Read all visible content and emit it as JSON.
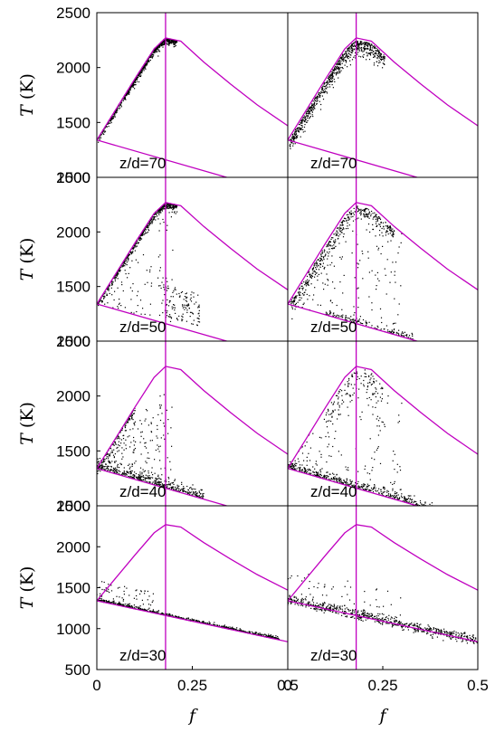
{
  "chart_data": {
    "type": "scatter",
    "xlabel": "f",
    "ylabel": "T (K)",
    "ylabel_symbol": "T",
    "ylabel_unit": "(K)",
    "xlim": [
      0,
      0.5
    ],
    "ylim_rows": [
      [
        1000,
        2500
      ],
      [
        1000,
        2500
      ],
      [
        1000,
        2500
      ],
      [
        500,
        2500
      ]
    ],
    "yticks_rows": [
      [
        "2500",
        "2000",
        "1500",
        "1000"
      ],
      [
        "2500",
        "2000",
        "1500",
        "1000"
      ],
      [
        "2500",
        "2000",
        "1500",
        "1000"
      ],
      [
        "2500",
        "2000",
        "1500",
        "1000",
        "500"
      ]
    ],
    "xticks": [
      "0",
      "0.25",
      "0.5"
    ],
    "stoich_f": 0.18,
    "panel_labels": [
      "z/d=70",
      "z/d=70",
      "z/d=50",
      "z/d=50",
      "z/d=40",
      "z/d=40",
      "z/d=30",
      "z/d=30"
    ],
    "reference_curves": {
      "equilibrium": {
        "x": [
          0,
          0.05,
          0.1,
          0.15,
          0.18,
          0.22,
          0.28,
          0.35,
          0.42,
          0.5
        ],
        "y": [
          1340,
          1620,
          1900,
          2170,
          2270,
          2240,
          2050,
          1850,
          1660,
          1470
        ]
      },
      "mixing": {
        "x": [
          0,
          0.5
        ],
        "y": [
          1340,
          840
        ]
      }
    },
    "grid": false,
    "legend": "none"
  }
}
